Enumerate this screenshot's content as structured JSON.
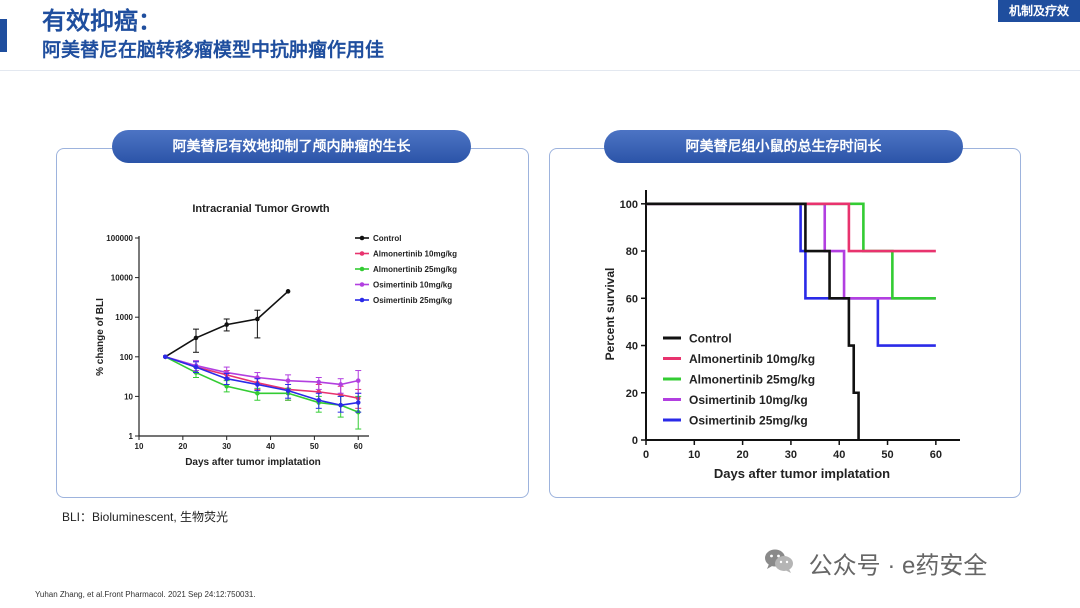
{
  "header": {
    "title_line1": "有效抑癌：",
    "title_line2": "阿美替尼在脑转移瘤模型中抗肿瘤作用佳",
    "tag": "机制及疗效"
  },
  "left_panel": {
    "caption": "阿美替尼有效地抑制了颅内肿瘤的生长"
  },
  "right_panel": {
    "caption": "阿美替尼组小鼠的总生存时间长"
  },
  "colors": {
    "Control": "#111111",
    "Almonertinib 10mg/kg": "#e8336e",
    "Almonertinib 25mg/kg": "#33cc33",
    "Osimertinib 10mg/kg": "#b23fe0",
    "Osimertinib 25mg/kg": "#2a2ae8"
  },
  "chart_data": [
    {
      "type": "line",
      "title": "Intracranial Tumor Growth",
      "xlabel": "Days after tumor implatation",
      "ylabel": "% change of BLI",
      "xlim": [
        10,
        62
      ],
      "xticks": [
        10,
        20,
        30,
        40,
        50,
        60
      ],
      "ylim": [
        1,
        100000
      ],
      "ylog": true,
      "yticks": [
        1,
        10,
        100,
        1000,
        10000,
        100000
      ],
      "ytick_labels": [
        "1",
        "10",
        "100",
        "1000",
        "10000",
        "100000"
      ],
      "legend_position": "top-right",
      "series": [
        {
          "name": "Control",
          "x": [
            16,
            23,
            30,
            37,
            44
          ],
          "y": [
            100,
            300,
            650,
            900,
            4500
          ],
          "err": [
            [
              100,
              100
            ],
            [
              130,
              500
            ],
            [
              450,
              900
            ],
            [
              300,
              1500
            ],
            [
              4500,
              4500
            ]
          ]
        },
        {
          "name": "Almonertinib 10mg/kg",
          "x": [
            16,
            23,
            30,
            37,
            44,
            51,
            56,
            60
          ],
          "y": [
            100,
            55,
            35,
            22,
            15,
            13,
            11,
            9
          ],
          "err": [
            [
              100,
              100
            ],
            [
              40,
              75
            ],
            [
              28,
              45
            ],
            [
              15,
              30
            ],
            [
              8,
              25
            ],
            [
              8,
              20
            ],
            [
              6,
              18
            ],
            [
              5,
              15
            ]
          ]
        },
        {
          "name": "Almonertinib 25mg/kg",
          "x": [
            16,
            23,
            30,
            37,
            44,
            51,
            56,
            60
          ],
          "y": [
            100,
            40,
            18,
            12,
            12,
            7,
            6,
            4
          ],
          "err": [
            [
              100,
              100
            ],
            [
              30,
              55
            ],
            [
              13,
              25
            ],
            [
              8,
              16
            ],
            [
              8,
              16
            ],
            [
              4,
              10
            ],
            [
              3,
              10
            ],
            [
              1.5,
              10
            ]
          ]
        },
        {
          "name": "Osimertinib 10mg/kg",
          "x": [
            16,
            23,
            30,
            37,
            44,
            51,
            56,
            60
          ],
          "y": [
            100,
            60,
            40,
            30,
            25,
            23,
            20,
            25
          ],
          "err": [
            [
              100,
              100
            ],
            [
              45,
              80
            ],
            [
              30,
              55
            ],
            [
              20,
              40
            ],
            [
              15,
              35
            ],
            [
              15,
              30
            ],
            [
              12,
              28
            ],
            [
              12,
              45
            ]
          ]
        },
        {
          "name": "Osimertinib 25mg/kg",
          "x": [
            16,
            23,
            30,
            37,
            44,
            51,
            56,
            60
          ],
          "y": [
            100,
            55,
            28,
            20,
            14,
            8,
            6,
            7
          ],
          "err": [
            [
              100,
              100
            ],
            [
              40,
              75
            ],
            [
              20,
              38
            ],
            [
              14,
              28
            ],
            [
              9,
              20
            ],
            [
              5,
              12
            ],
            [
              4,
              10
            ],
            [
              4,
              12
            ]
          ]
        }
      ]
    },
    {
      "type": "line",
      "title": "",
      "xlabel": "Days after tumor implatation",
      "ylabel": "Percent survival",
      "xlim": [
        0,
        65
      ],
      "xticks": [
        0,
        10,
        20,
        30,
        40,
        50,
        60
      ],
      "ylim": [
        0,
        105
      ],
      "yticks": [
        0,
        20,
        40,
        60,
        80,
        100
      ],
      "step": true,
      "legend_position": "bottom-left",
      "series": [
        {
          "name": "Control",
          "x": [
            0,
            33,
            38,
            42,
            43,
            44
          ],
          "y": [
            100,
            80,
            60,
            40,
            20,
            0
          ]
        },
        {
          "name": "Almonertinib 10mg/kg",
          "x": [
            0,
            42,
            60
          ],
          "y": [
            100,
            80,
            80
          ]
        },
        {
          "name": "Almonertinib 25mg/kg",
          "x": [
            0,
            45,
            51,
            60
          ],
          "y": [
            100,
            80,
            60,
            60
          ]
        },
        {
          "name": "Osimertinib 10mg/kg",
          "x": [
            0,
            37,
            41,
            60
          ],
          "y": [
            100,
            80,
            60,
            60
          ]
        },
        {
          "name": "Osimertinib 25mg/kg",
          "x": [
            0,
            32,
            33,
            48,
            60
          ],
          "y": [
            100,
            80,
            60,
            40,
            40
          ]
        }
      ]
    }
  ],
  "footnote": "BLI：Bioluminescent, 生物荧光",
  "citation": "Yuhan Zhang, et al.Front Pharmacol. 2021 Sep 24:12:750031.",
  "watermark": {
    "icon": "wechat-icon",
    "text": "公众号 · e药安全"
  }
}
